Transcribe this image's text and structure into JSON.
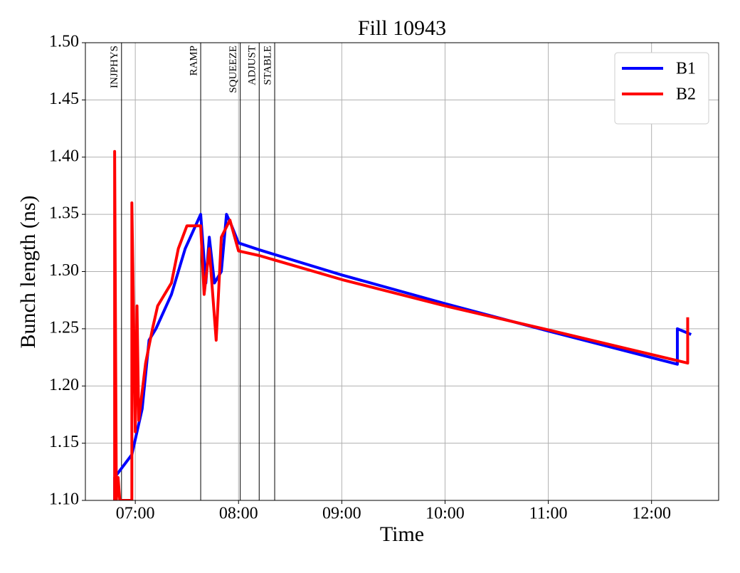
{
  "chart_data": {
    "type": "line",
    "title": "Fill 10943",
    "x_label": "Time",
    "y_label": "Bunch length (ns)",
    "xlim": [
      "06:31",
      "12:39"
    ],
    "xticks": [
      "07:00",
      "08:00",
      "09:00",
      "10:00",
      "11:00",
      "12:00"
    ],
    "ylim": [
      1.1,
      1.5
    ],
    "yticks": [
      {
        "value": 1.1,
        "label": "1.10"
      },
      1.15,
      {
        "value": 1.2,
        "label": "1.20"
      },
      1.25,
      {
        "value": 1.3,
        "label": "1.30"
      },
      1.35,
      {
        "value": 1.4,
        "label": "1.40"
      },
      1.45,
      {
        "value": 1.5,
        "label": "1.50"
      }
    ],
    "grid": true,
    "legend": "upper right",
    "annotations": [
      {
        "label": "INJPHYS",
        "x": "06:52"
      },
      {
        "label": "RAMP",
        "x": "07:38"
      },
      {
        "label": "SQUEEZE",
        "x": "08:01"
      },
      {
        "label": "ADJUST",
        "x": "08:12"
      },
      {
        "label": "STABLE",
        "x": "08:21"
      }
    ],
    "series": [
      {
        "name": "B1",
        "color": "#0000ff",
        "x": [
          "06:48",
          "06:48",
          "06:58",
          "07:04",
          "07:08",
          "07:12",
          "07:21",
          "07:29",
          "07:38",
          "07:41",
          "07:43",
          "07:46",
          "07:50",
          "07:53",
          "07:56",
          "08:00",
          "08:12",
          "09:00",
          "10:00",
          "11:00",
          "12:15",
          "12:15",
          "12:23"
        ],
        "values": [
          1.1,
          1.12,
          1.14,
          1.18,
          1.24,
          1.25,
          1.28,
          1.32,
          1.35,
          1.29,
          1.33,
          1.29,
          1.3,
          1.35,
          1.34,
          1.325,
          1.319,
          1.297,
          1.272,
          1.248,
          1.219,
          1.25,
          1.245
        ]
      },
      {
        "name": "B2",
        "color": "#ff0000",
        "x": [
          "06:48",
          "06:48",
          "06:49",
          "06:50",
          "06:51",
          "06:58",
          "06:58",
          "07:00",
          "07:01",
          "07:02",
          "07:06",
          "07:10",
          "07:13",
          "07:21",
          "07:25",
          "07:30",
          "07:38",
          "07:40",
          "07:43",
          "07:47",
          "07:50",
          "07:55",
          "08:00",
          "08:12",
          "09:00",
          "10:00",
          "11:00",
          "12:21",
          "12:21"
        ],
        "values": [
          1.1,
          1.405,
          1.1,
          1.12,
          1.1,
          1.1,
          1.36,
          1.16,
          1.27,
          1.17,
          1.22,
          1.25,
          1.27,
          1.29,
          1.32,
          1.34,
          1.34,
          1.28,
          1.32,
          1.24,
          1.33,
          1.345,
          1.318,
          1.314,
          1.293,
          1.27,
          1.249,
          1.22,
          1.26
        ]
      }
    ]
  }
}
